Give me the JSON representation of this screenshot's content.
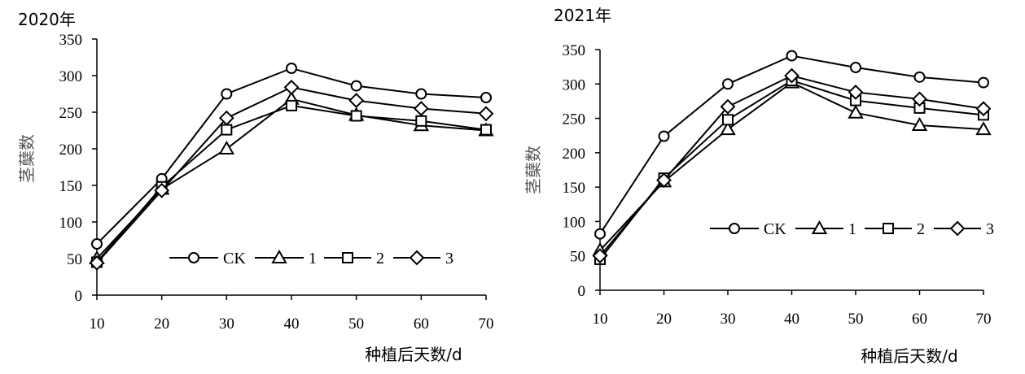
{
  "chart_data": [
    {
      "type": "line",
      "title": "2020年",
      "xlabel": "种植后天数/d",
      "ylabel": "茎蘖数",
      "x": [
        10,
        20,
        30,
        40,
        50,
        60,
        70
      ],
      "xlim": [
        10,
        70
      ],
      "ylim": [
        0,
        350
      ],
      "yticks": [
        0,
        50,
        100,
        150,
        200,
        250,
        300,
        350
      ],
      "grid": false,
      "legend_position": "bottom-center",
      "series": [
        {
          "name": "CK",
          "marker": "circle",
          "values": [
            70,
            159,
            275,
            310,
            286,
            275,
            270
          ]
        },
        {
          "name": "1",
          "marker": "triangle",
          "values": [
            50,
            145,
            200,
            268,
            246,
            232,
            225
          ]
        },
        {
          "name": "2",
          "marker": "square",
          "values": [
            45,
            148,
            226,
            259,
            245,
            238,
            226
          ]
        },
        {
          "name": "3",
          "marker": "diamond",
          "values": [
            44,
            143,
            242,
            284,
            266,
            255,
            248
          ]
        }
      ]
    },
    {
      "type": "line",
      "title": "2021年",
      "xlabel": "种植后天数/d",
      "ylabel": "茎蘖数",
      "x": [
        10,
        20,
        30,
        40,
        50,
        60,
        70
      ],
      "xlim": [
        10,
        70
      ],
      "ylim": [
        0,
        350
      ],
      "yticks": [
        0,
        50,
        100,
        150,
        200,
        250,
        300,
        350
      ],
      "grid": false,
      "legend_position": "center-right",
      "series": [
        {
          "name": "CK",
          "marker": "circle",
          "values": [
            82,
            224,
            300,
            341,
            324,
            310,
            302
          ]
        },
        {
          "name": "1",
          "marker": "triangle",
          "values": [
            58,
            158,
            234,
            302,
            258,
            240,
            234
          ]
        },
        {
          "name": "2",
          "marker": "square",
          "values": [
            45,
            163,
            248,
            305,
            276,
            265,
            255
          ]
        },
        {
          "name": "3",
          "marker": "diamond",
          "values": [
            50,
            160,
            267,
            312,
            288,
            278,
            264
          ]
        }
      ]
    }
  ]
}
